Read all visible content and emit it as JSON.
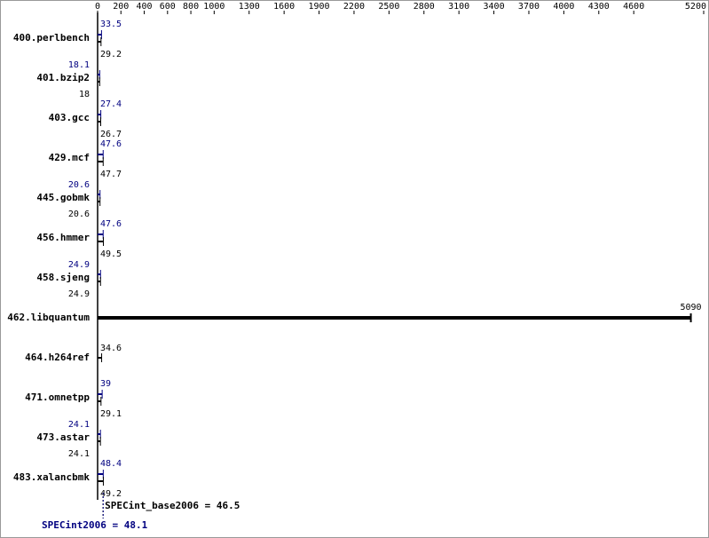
{
  "chart_data": {
    "type": "bar",
    "orientation": "horizontal",
    "categories": [
      "400.perlbench",
      "401.bzip2",
      "403.gcc",
      "429.mcf",
      "445.gobmk",
      "456.hmmer",
      "458.sjeng",
      "462.libquantum",
      "464.h264ref",
      "471.omnetpp",
      "473.astar",
      "483.xalancbmk"
    ],
    "series": [
      {
        "color": "#000080",
        "values": [
          33.5,
          18.1,
          27.4,
          47.6,
          20.6,
          47.6,
          24.9,
          null,
          null,
          39.0,
          24.1,
          48.4
        ]
      },
      {
        "color": "#000000",
        "values": [
          29.2,
          18.0,
          26.7,
          47.7,
          20.6,
          49.5,
          24.9,
          5090,
          34.6,
          29.1,
          24.1,
          49.2
        ]
      }
    ],
    "xlim": [
      0,
      5200
    ],
    "xticks": [
      0,
      200,
      400,
      600,
      800,
      1000,
      1300,
      1600,
      1900,
      2200,
      2500,
      2800,
      3100,
      3400,
      3700,
      4000,
      4300,
      4600,
      5200
    ],
    "reference_lines": [
      {
        "value": 46.5,
        "label": "SPECint_base2006 = 46.5",
        "color": "#000000"
      },
      {
        "value": 48.1,
        "label": "SPECint2006 = 48.1",
        "color": "#000080"
      }
    ]
  }
}
